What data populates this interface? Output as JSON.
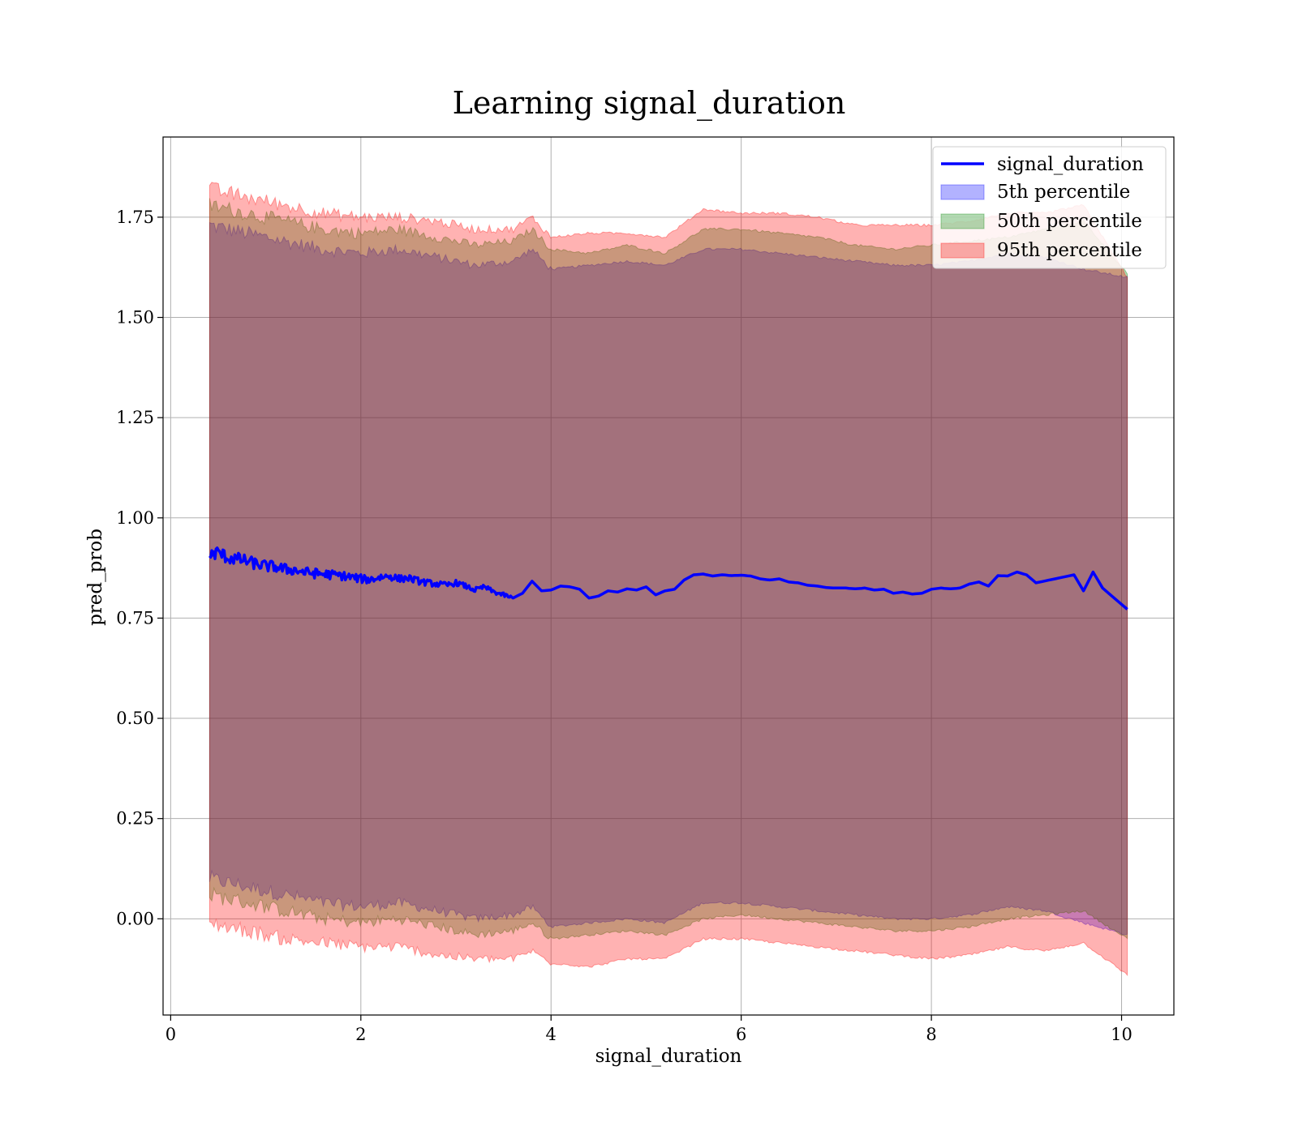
{
  "chart_data": {
    "type": "line",
    "title": "Learning signal_duration",
    "xlabel": "signal_duration",
    "ylabel": "pred_prob",
    "xlim": [
      -0.08,
      10.55
    ],
    "ylim": [
      -0.24,
      1.95
    ],
    "xticks": [
      0,
      2,
      4,
      6,
      8,
      10
    ],
    "xtick_labels": [
      "0",
      "2",
      "4",
      "6",
      "8",
      "10"
    ],
    "yticks": [
      0.0,
      0.25,
      0.5,
      0.75,
      1.0,
      1.25,
      1.5,
      1.75
    ],
    "ytick_labels": [
      "0.00",
      "0.25",
      "0.50",
      "0.75",
      "1.00",
      "1.25",
      "1.50",
      "1.75"
    ],
    "grid": true,
    "legend_position": "top-right",
    "line": {
      "name": "signal_duration",
      "color": "#0000ff",
      "x": [
        0.41,
        0.5,
        0.6,
        0.7,
        0.8,
        0.9,
        1.0,
        1.1,
        1.2,
        1.3,
        1.4,
        1.5,
        1.6,
        1.7,
        1.8,
        1.9,
        2.0,
        2.1,
        2.2,
        2.3,
        2.4,
        2.5,
        2.6,
        2.7,
        2.8,
        2.9,
        3.0,
        3.1,
        3.2,
        3.3,
        3.4,
        3.5,
        3.6,
        3.7,
        3.8,
        3.9,
        4.0,
        4.1,
        4.2,
        4.3,
        4.4,
        4.5,
        4.6,
        4.7,
        4.8,
        4.9,
        5.0,
        5.1,
        5.2,
        5.3,
        5.4,
        5.5,
        5.6,
        5.7,
        5.8,
        5.9,
        6.0,
        6.1,
        6.2,
        6.3,
        6.4,
        6.5,
        6.6,
        6.7,
        6.8,
        6.9,
        7.0,
        7.1,
        7.2,
        7.3,
        7.4,
        7.5,
        7.6,
        7.7,
        7.8,
        7.9,
        8.0,
        8.1,
        8.2,
        8.3,
        8.4,
        8.5,
        8.6,
        8.7,
        8.8,
        8.9,
        9.0,
        9.1,
        9.3,
        9.5,
        9.6,
        9.7,
        9.8,
        10.06
      ],
      "y": [
        0.905,
        0.915,
        0.9,
        0.898,
        0.892,
        0.885,
        0.88,
        0.878,
        0.872,
        0.87,
        0.865,
        0.862,
        0.86,
        0.858,
        0.856,
        0.852,
        0.848,
        0.846,
        0.852,
        0.855,
        0.848,
        0.85,
        0.843,
        0.838,
        0.835,
        0.832,
        0.838,
        0.83,
        0.82,
        0.828,
        0.815,
        0.808,
        0.8,
        0.812,
        0.842,
        0.818,
        0.82,
        0.83,
        0.828,
        0.822,
        0.8,
        0.805,
        0.818,
        0.815,
        0.823,
        0.82,
        0.828,
        0.808,
        0.818,
        0.822,
        0.845,
        0.858,
        0.86,
        0.855,
        0.858,
        0.856,
        0.857,
        0.855,
        0.848,
        0.845,
        0.848,
        0.84,
        0.838,
        0.832,
        0.83,
        0.826,
        0.825,
        0.825,
        0.823,
        0.825,
        0.82,
        0.822,
        0.812,
        0.815,
        0.81,
        0.812,
        0.822,
        0.825,
        0.823,
        0.825,
        0.835,
        0.84,
        0.83,
        0.856,
        0.855,
        0.865,
        0.858,
        0.838,
        0.848,
        0.858,
        0.818,
        0.865,
        0.825,
        0.772
      ]
    },
    "bands": [
      {
        "name": "5th percentile",
        "color": "#0000ff",
        "opacity": 0.3,
        "x": [
          0.41,
          0.8,
          1.2,
          1.6,
          2.0,
          2.4,
          2.8,
          3.2,
          3.6,
          3.8,
          4.0,
          4.4,
          4.8,
          5.2,
          5.6,
          6.0,
          6.4,
          6.8,
          7.2,
          7.6,
          8.0,
          8.4,
          8.8,
          9.2,
          9.6,
          10.06
        ],
        "upper": [
          1.73,
          1.71,
          1.69,
          1.67,
          1.66,
          1.67,
          1.65,
          1.63,
          1.64,
          1.67,
          1.62,
          1.63,
          1.64,
          1.63,
          1.67,
          1.67,
          1.66,
          1.65,
          1.64,
          1.63,
          1.63,
          1.64,
          1.66,
          1.65,
          1.62,
          1.6
        ],
        "lower": [
          0.1,
          0.08,
          0.06,
          0.04,
          0.03,
          0.04,
          0.02,
          0.0,
          0.01,
          0.03,
          -0.02,
          -0.01,
          0.0,
          -0.01,
          0.04,
          0.04,
          0.03,
          0.02,
          0.01,
          0.0,
          0.0,
          0.01,
          0.03,
          0.02,
          -0.01,
          -0.04
        ]
      },
      {
        "name": "50th percentile",
        "color": "#008000",
        "opacity": 0.3,
        "x": [
          0.41,
          0.8,
          1.2,
          1.6,
          2.0,
          2.4,
          2.8,
          3.2,
          3.6,
          3.8,
          4.0,
          4.4,
          4.8,
          5.2,
          5.6,
          6.0,
          6.4,
          6.8,
          7.2,
          7.6,
          8.0,
          8.4,
          8.8,
          9.2,
          9.6,
          10.06
        ],
        "upper": [
          1.78,
          1.76,
          1.74,
          1.72,
          1.71,
          1.72,
          1.7,
          1.68,
          1.69,
          1.72,
          1.67,
          1.66,
          1.68,
          1.66,
          1.72,
          1.72,
          1.71,
          1.7,
          1.68,
          1.67,
          1.68,
          1.69,
          1.7,
          1.72,
          1.74,
          1.61
        ],
        "lower": [
          0.06,
          0.04,
          0.02,
          0.0,
          -0.01,
          0.0,
          -0.02,
          -0.04,
          -0.03,
          -0.01,
          -0.05,
          -0.04,
          -0.03,
          -0.04,
          0.0,
          0.01,
          0.0,
          -0.01,
          -0.02,
          -0.03,
          -0.03,
          -0.02,
          0.0,
          0.01,
          0.02,
          -0.05
        ]
      },
      {
        "name": "95th percentile",
        "color": "#ff0000",
        "opacity": 0.3,
        "x": [
          0.41,
          0.8,
          1.2,
          1.6,
          2.0,
          2.4,
          2.8,
          3.2,
          3.6,
          3.8,
          4.0,
          4.4,
          4.8,
          5.2,
          5.6,
          6.0,
          6.4,
          6.8,
          7.2,
          7.6,
          8.0,
          8.4,
          8.8,
          9.2,
          9.6,
          10.06
        ],
        "upper": [
          1.82,
          1.8,
          1.78,
          1.76,
          1.75,
          1.75,
          1.74,
          1.72,
          1.72,
          1.75,
          1.7,
          1.71,
          1.71,
          1.7,
          1.77,
          1.76,
          1.76,
          1.75,
          1.73,
          1.73,
          1.73,
          1.74,
          1.76,
          1.76,
          1.78,
          1.6
        ],
        "lower": [
          -0.01,
          -0.03,
          -0.05,
          -0.06,
          -0.07,
          -0.07,
          -0.09,
          -0.1,
          -0.1,
          -0.08,
          -0.11,
          -0.12,
          -0.1,
          -0.1,
          -0.05,
          -0.05,
          -0.06,
          -0.07,
          -0.08,
          -0.09,
          -0.1,
          -0.09,
          -0.07,
          -0.08,
          -0.06,
          -0.14
        ]
      }
    ]
  }
}
